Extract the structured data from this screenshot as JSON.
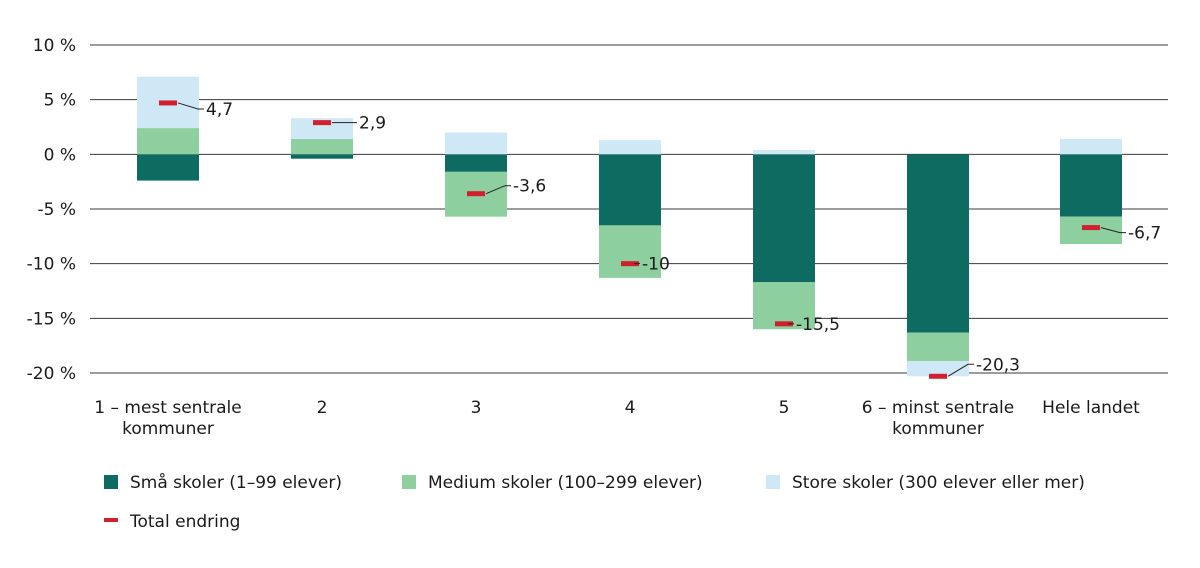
{
  "chart_data": {
    "type": "bar",
    "stacked": true,
    "title": "",
    "xlabel": "",
    "ylabel": "",
    "ylim": [
      -20,
      10
    ],
    "y_ticks": [
      10,
      5,
      0,
      -5,
      -10,
      -15,
      -20
    ],
    "y_tick_labels": [
      "10 %",
      "5 %",
      "0 %",
      "-5 %",
      "-10 %",
      "-15 %",
      "-20 %"
    ],
    "categories": [
      [
        "1 – mest sentrale",
        "kommuner"
      ],
      [
        "2"
      ],
      [
        "3"
      ],
      [
        "4"
      ],
      [
        "5"
      ],
      [
        "6 – minst sentrale",
        "kommuner"
      ],
      [
        "Hele landet"
      ]
    ],
    "series": [
      {
        "name": "Små skoler (1–99 elever)",
        "color": "#0e6b62",
        "values": [
          -2.4,
          -0.4,
          -1.6,
          -6.5,
          -11.7,
          -16.3,
          -5.7
        ]
      },
      {
        "name": "Medium skoler (100–299 elever)",
        "color": "#8ecf9f",
        "values": [
          2.4,
          1.4,
          -4.1,
          -4.8,
          -4.3,
          -2.6,
          -2.5
        ]
      },
      {
        "name": "Store skoler (300 elever eller mer)",
        "color": "#cfe8f5",
        "values": [
          4.7,
          1.9,
          2.0,
          1.3,
          0.4,
          -1.4,
          1.4
        ]
      }
    ],
    "total": {
      "name": "Total endring",
      "color": "#d0202e",
      "values": [
        4.7,
        2.9,
        -3.6,
        -10,
        -15.5,
        -20.3,
        -6.7
      ],
      "labels": [
        "4,7",
        "2,9",
        "-3,6",
        "-10",
        "-15,5",
        "-20,3",
        "-6,7"
      ]
    },
    "legend_position": "bottom-left",
    "grid": true
  }
}
